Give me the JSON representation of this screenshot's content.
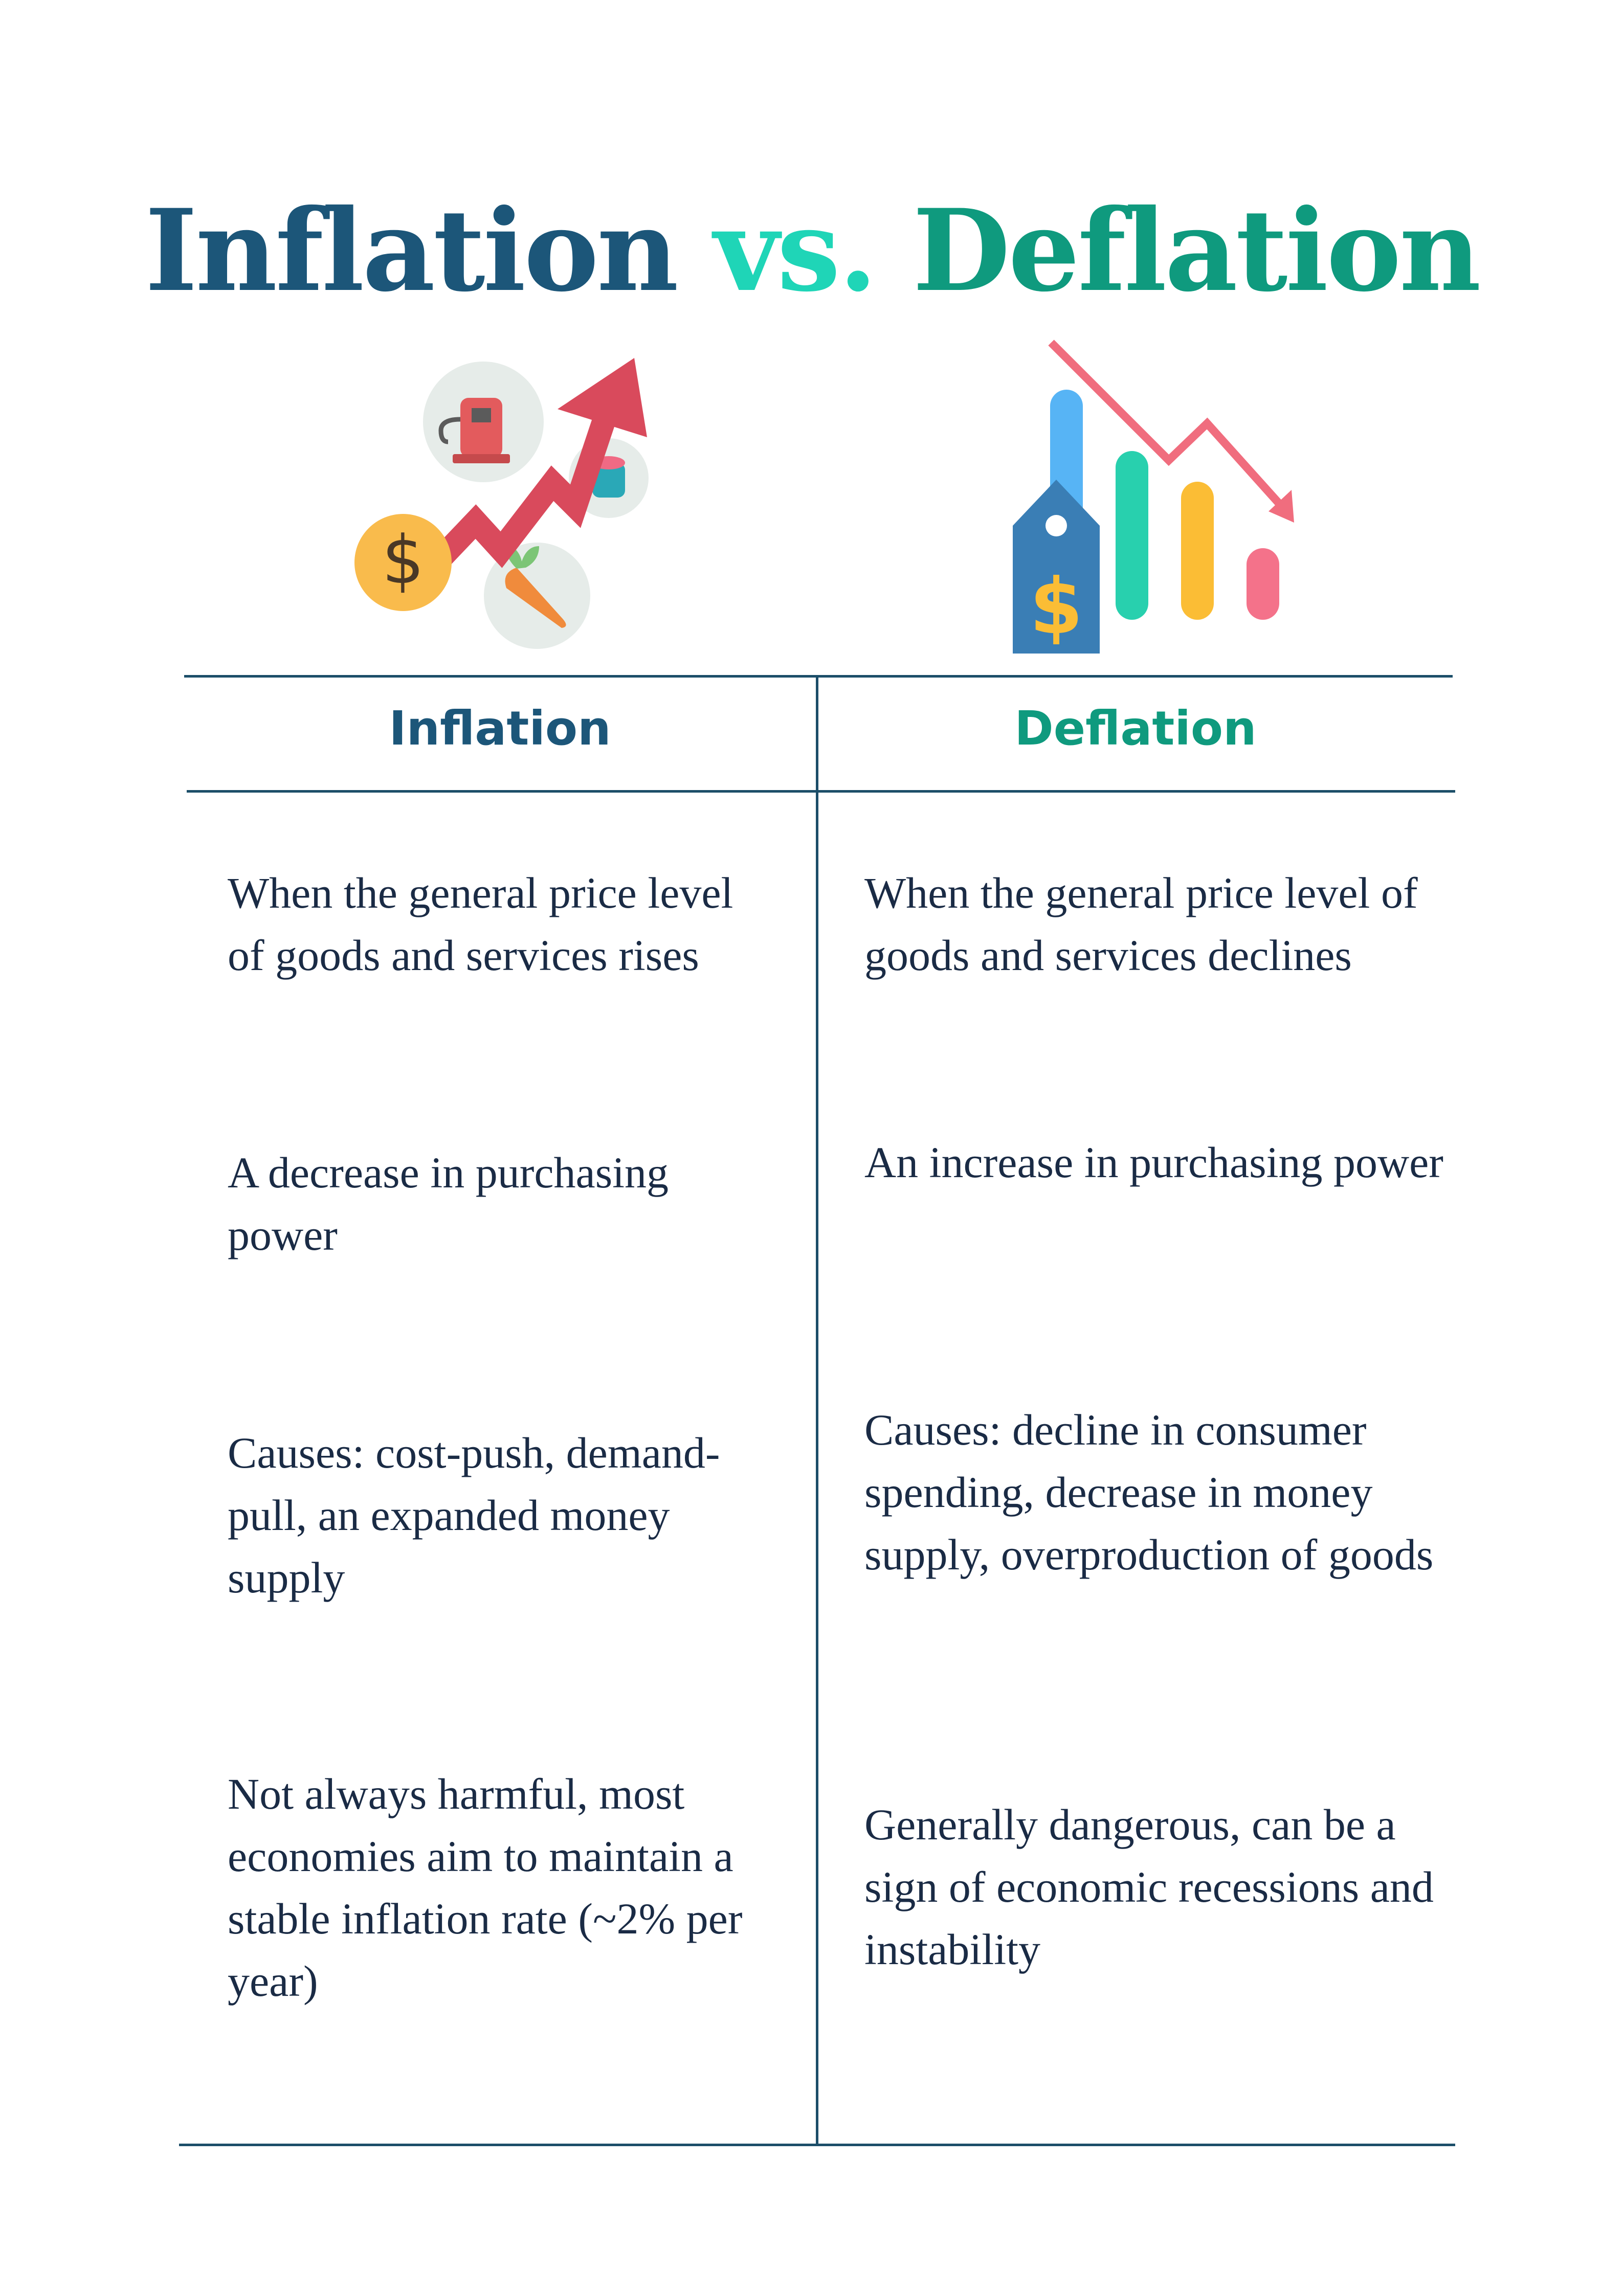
{
  "title": {
    "part1": "Inflation",
    "part2": "vs.",
    "part3": "Deflation"
  },
  "illustrations": {
    "left": {
      "icons": [
        "gas-pump-icon",
        "coin-dollar-icon",
        "rising-arrow-icon",
        "carrot-icon",
        "can-icon"
      ]
    },
    "right": {
      "icons": [
        "price-tag-dollar-icon",
        "bar-chart-icon",
        "falling-arrow-icon"
      ]
    }
  },
  "table": {
    "headers": {
      "left": "Inflation",
      "right": "Deflation"
    },
    "rows": [
      {
        "left": "When the general price level of goods and services rises",
        "right": "When the general price level of goods and services declines"
      },
      {
        "left": "A decrease in purchasing power",
        "right": "An increase in purchasing power"
      },
      {
        "left": "Causes: cost-push, demand-pull, an expanded money supply",
        "right": "Causes: decline in consumer spending, decrease in money supply, overproduction of goods"
      },
      {
        "left": "Not always harmful, most economies aim to maintain a stable inflation rate  (~2% per year)",
        "right": "Generally dangerous, can be  a sign of economic recessions and instability"
      }
    ]
  },
  "colors": {
    "inflation": "#1c5679",
    "vs": "#1fd5b7",
    "deflation": "#0f9a7e",
    "rule": "#1c4e69",
    "body_text": "#1a2b45"
  }
}
